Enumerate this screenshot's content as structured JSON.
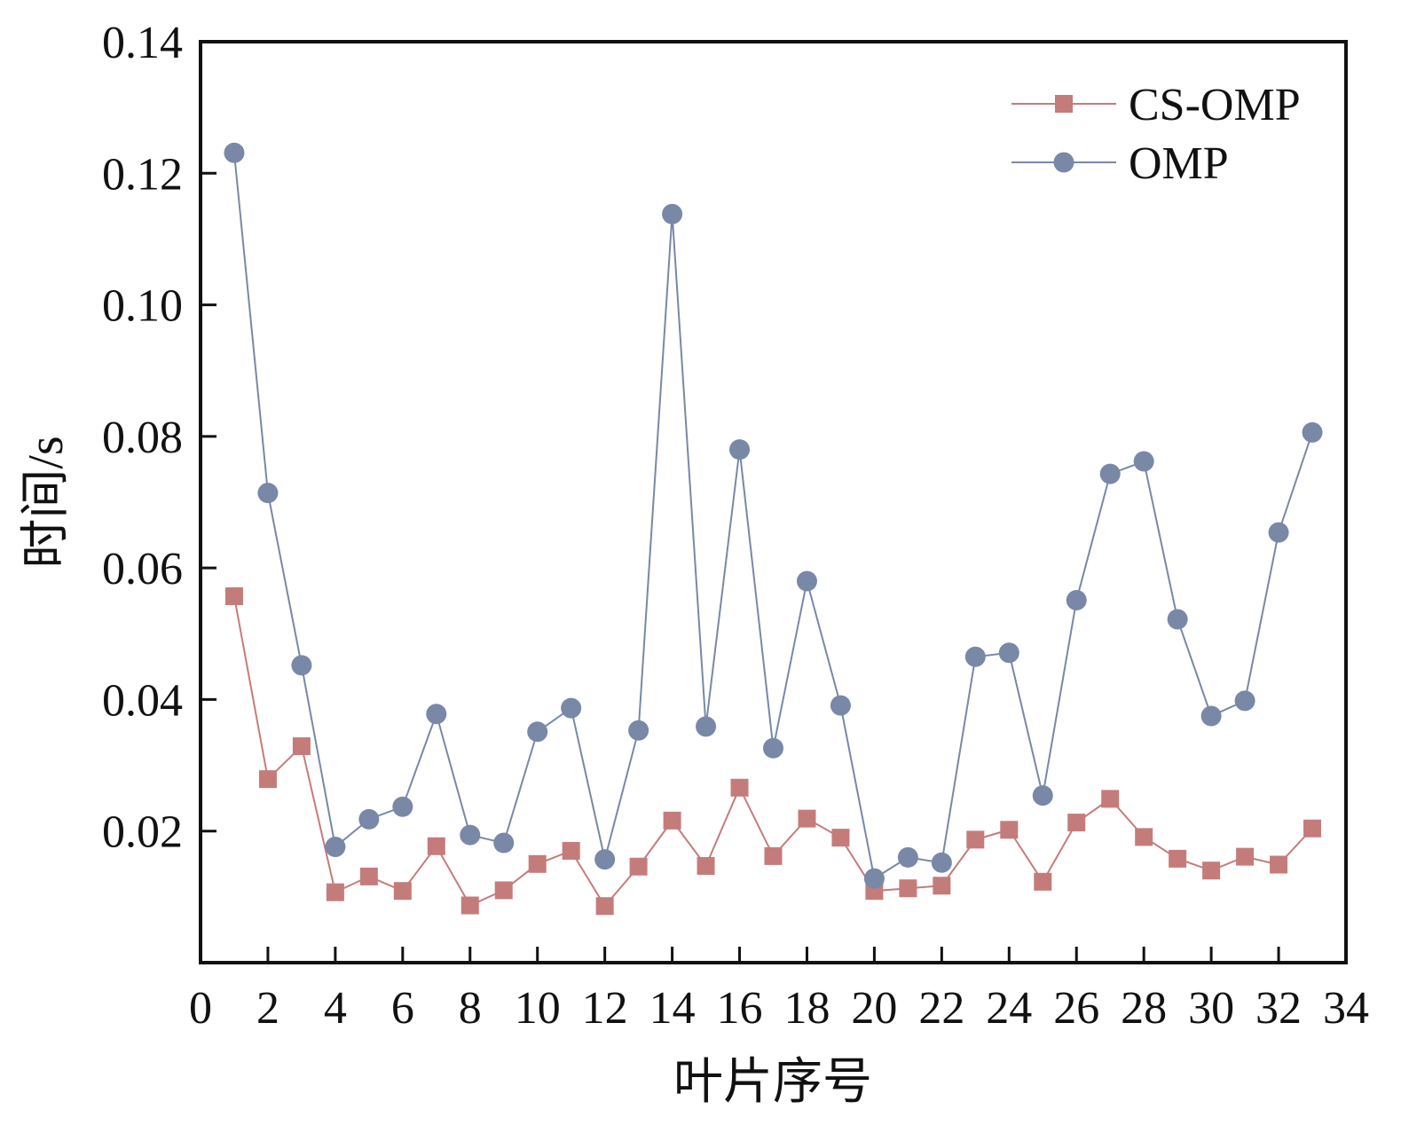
{
  "chart_data": {
    "type": "line",
    "title": "",
    "xlabel": "叶片序号",
    "ylabel": "时间/s",
    "xlim": [
      0,
      34
    ],
    "ylim": [
      0,
      0.14
    ],
    "x_ticks": [
      0,
      2,
      4,
      6,
      8,
      10,
      12,
      14,
      16,
      18,
      20,
      22,
      24,
      26,
      28,
      30,
      32,
      34
    ],
    "x_tick_labels": [
      "0",
      "2",
      "4",
      "6",
      "8",
      "10",
      "12",
      "14",
      "16",
      "18",
      "20",
      "22",
      "24",
      "26",
      "28",
      "30",
      "32",
      "34"
    ],
    "y_ticks": [
      0.02,
      0.04,
      0.06,
      0.08,
      0.1,
      0.12,
      0.14
    ],
    "y_tick_labels": [
      "0.02",
      "0.04",
      "0.06",
      "0.08",
      "0.10",
      "0.12",
      "0.14"
    ],
    "legend_position": "top-right",
    "x": [
      1,
      2,
      3,
      4,
      5,
      6,
      7,
      8,
      9,
      10,
      11,
      12,
      13,
      14,
      15,
      16,
      17,
      18,
      19,
      20,
      21,
      22,
      23,
      24,
      25,
      26,
      27,
      28,
      29,
      30,
      31,
      32,
      33
    ],
    "series": [
      {
        "name": "CS-OMP",
        "marker": "square",
        "color": "#c47c7b",
        "values": [
          0.0557,
          0.0279,
          0.0329,
          0.0107,
          0.0131,
          0.0109,
          0.0177,
          0.0087,
          0.011,
          0.015,
          0.017,
          0.0086,
          0.0146,
          0.0216,
          0.0147,
          0.0266,
          0.0162,
          0.0219,
          0.019,
          0.0109,
          0.0113,
          0.0117,
          0.0187,
          0.0202,
          0.0123,
          0.0213,
          0.0249,
          0.0191,
          0.0158,
          0.014,
          0.0161,
          0.0149,
          0.0204
        ]
      },
      {
        "name": "OMP",
        "marker": "circle",
        "color": "#7888a6",
        "values": [
          0.1231,
          0.0714,
          0.0452,
          0.0176,
          0.0218,
          0.0237,
          0.0378,
          0.0194,
          0.0182,
          0.0351,
          0.0387,
          0.0157,
          0.0353,
          0.1138,
          0.0359,
          0.078,
          0.0326,
          0.058,
          0.0391,
          0.0128,
          0.016,
          0.0152,
          0.0465,
          0.0471,
          0.0254,
          0.0551,
          0.0743,
          0.0762,
          0.0522,
          0.0375,
          0.0398,
          0.0654,
          0.0806
        ]
      }
    ]
  }
}
